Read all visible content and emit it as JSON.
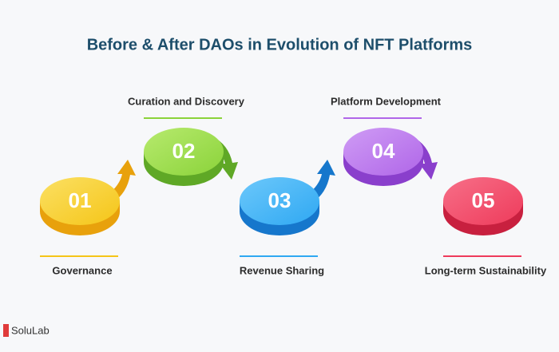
{
  "header": {
    "title": "Before & After DAOs in Evolution of NFT Platforms"
  },
  "steps": [
    {
      "number": "01",
      "label": "Governance"
    },
    {
      "number": "02",
      "label": "Curation and Discovery"
    },
    {
      "number": "03",
      "label": "Revenue Sharing"
    },
    {
      "number": "04",
      "label": "Platform Development"
    },
    {
      "number": "05",
      "label": "Long-term Sustainability"
    }
  ],
  "logo": {
    "text": "SoluLab"
  }
}
